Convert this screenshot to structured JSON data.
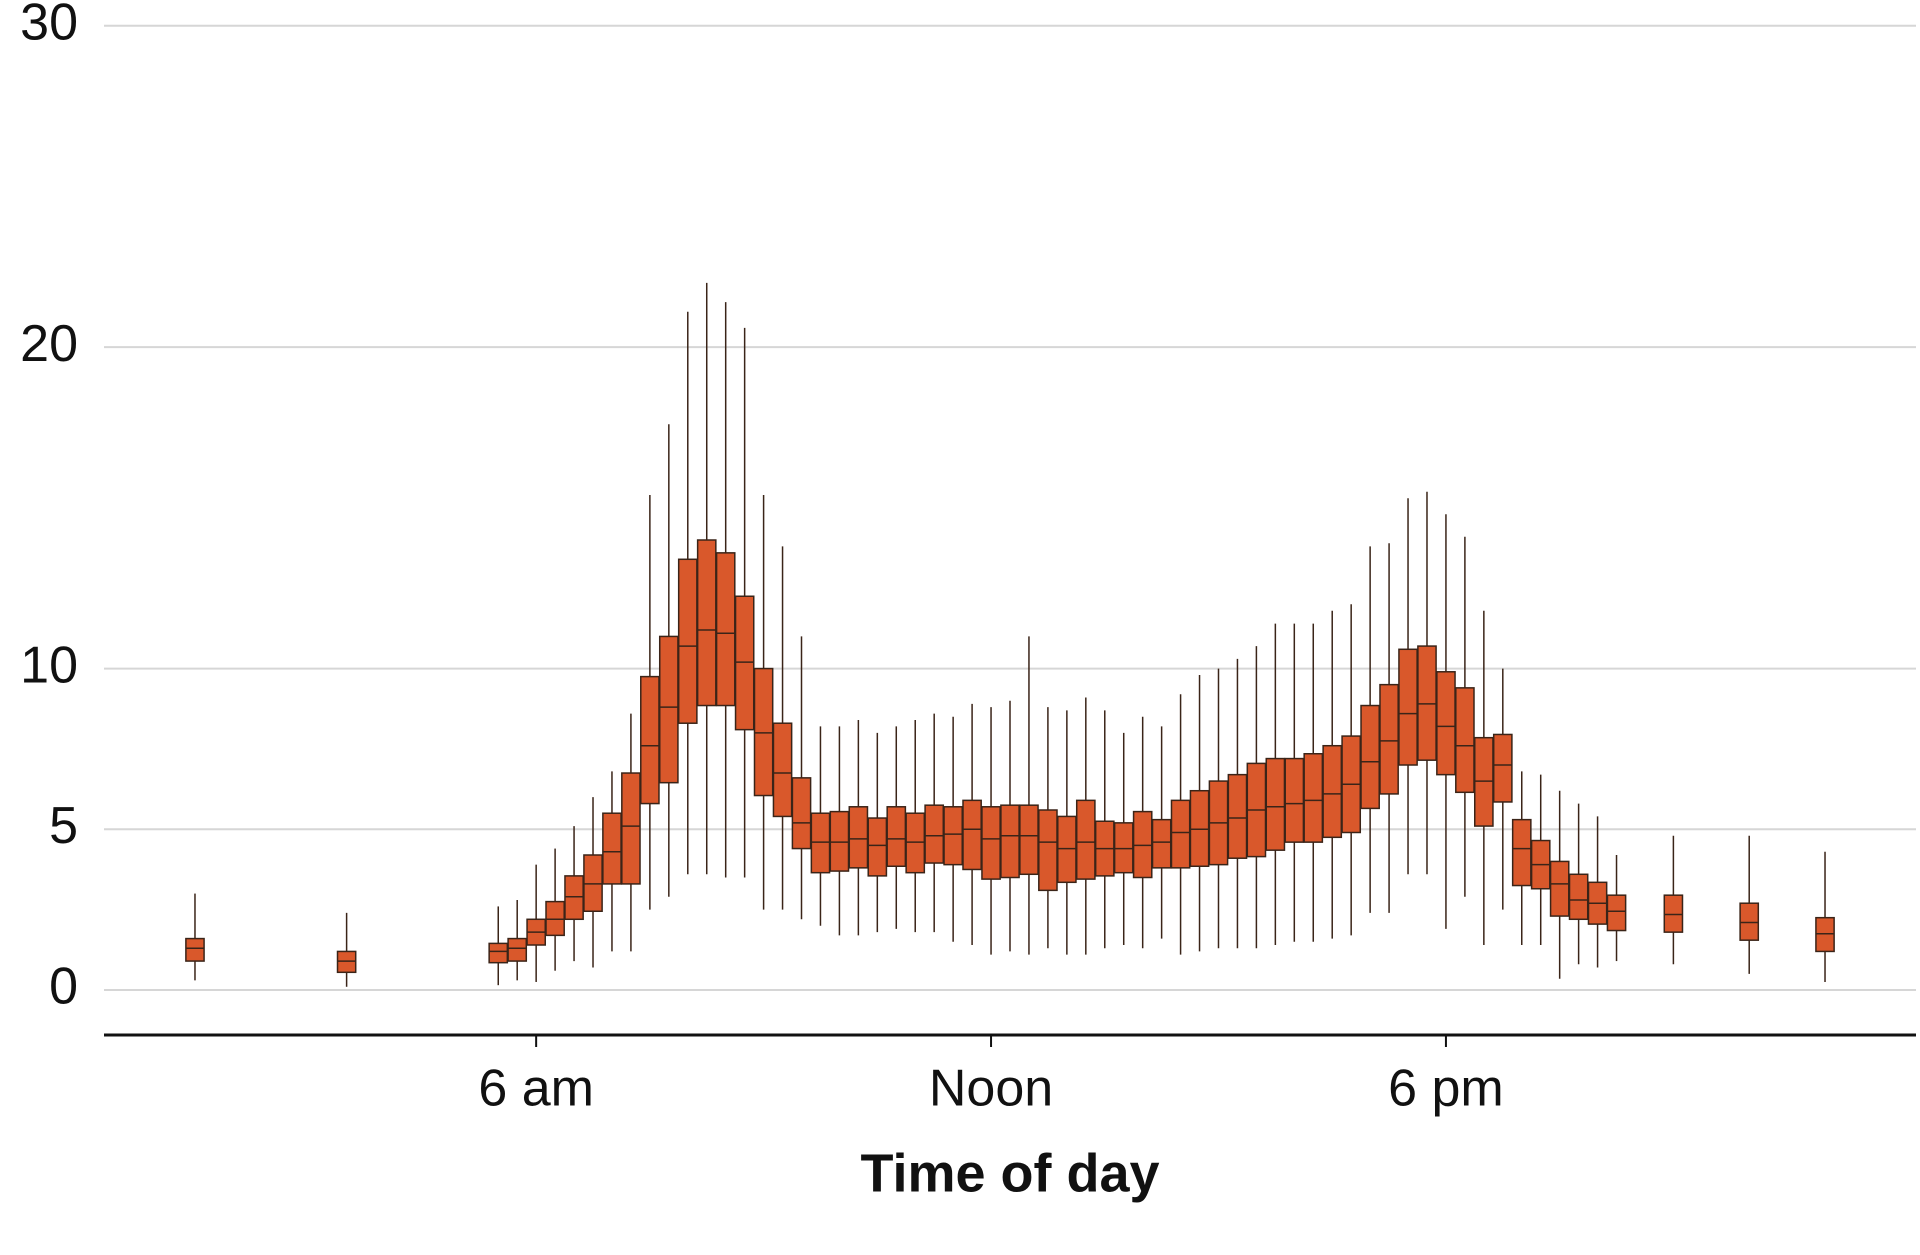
{
  "chart_data": {
    "type": "box",
    "x_label": "Time of day",
    "color": "#d9582b",
    "edge_color": "#3a2418",
    "grid": true,
    "xlim": [
      0.3,
      24.2
    ],
    "xticks": [
      {
        "value": 6,
        "label": "6 am"
      },
      {
        "value": 12,
        "label": "Noon"
      },
      {
        "value": 18,
        "label": "6 pm"
      }
    ],
    "ylim": [
      -1.4,
      30.8
    ],
    "yticks": [
      0,
      5,
      10,
      20,
      30
    ],
    "x": [
      1.5,
      3.5,
      5.5,
      5.75,
      6.0,
      6.25,
      6.5,
      6.75,
      7.0,
      7.25,
      7.5,
      7.75,
      8.0,
      8.25,
      8.5,
      8.75,
      9.0,
      9.25,
      9.5,
      9.75,
      10.0,
      10.25,
      10.5,
      10.75,
      11.0,
      11.25,
      11.5,
      11.75,
      12.0,
      12.25,
      12.5,
      12.75,
      13.0,
      13.25,
      13.5,
      13.75,
      14.0,
      14.25,
      14.5,
      14.75,
      15.0,
      15.25,
      15.5,
      15.75,
      16.0,
      16.25,
      16.5,
      16.75,
      17.0,
      17.25,
      17.5,
      17.75,
      18.0,
      18.25,
      18.5,
      18.75,
      19.0,
      19.25,
      19.5,
      19.75,
      20.0,
      20.25,
      21.0,
      22.0,
      23.0
    ],
    "q1": [
      0.9,
      0.55,
      0.85,
      0.9,
      1.4,
      1.7,
      2.2,
      2.45,
      3.3,
      3.3,
      5.8,
      6.45,
      8.3,
      8.85,
      8.85,
      8.1,
      6.05,
      5.4,
      4.4,
      3.65,
      3.7,
      3.8,
      3.55,
      3.85,
      3.65,
      3.95,
      3.9,
      3.75,
      3.45,
      3.5,
      3.6,
      3.1,
      3.35,
      3.45,
      3.55,
      3.65,
      3.5,
      3.8,
      3.8,
      3.85,
      3.9,
      4.1,
      4.15,
      4.35,
      4.6,
      4.6,
      4.75,
      4.9,
      5.65,
      6.1,
      7.0,
      7.15,
      6.7,
      6.15,
      5.1,
      5.85,
      3.25,
      3.15,
      2.3,
      2.2,
      2.05,
      1.85,
      1.8,
      1.55,
      1.2
    ],
    "median": [
      1.3,
      0.9,
      1.2,
      1.3,
      1.8,
      2.2,
      2.9,
      3.3,
      4.3,
      5.1,
      7.6,
      8.8,
      10.7,
      11.2,
      11.1,
      10.2,
      8.0,
      6.75,
      5.2,
      4.6,
      4.6,
      4.7,
      4.5,
      4.7,
      4.6,
      4.8,
      4.85,
      5.0,
      4.7,
      4.8,
      4.8,
      4.6,
      4.4,
      4.6,
      4.4,
      4.4,
      4.5,
      4.6,
      4.9,
      5.0,
      5.2,
      5.35,
      5.6,
      5.7,
      5.8,
      5.9,
      6.1,
      6.4,
      7.1,
      7.75,
      8.6,
      8.9,
      8.2,
      7.6,
      6.5,
      7.0,
      4.4,
      3.9,
      3.3,
      2.8,
      2.7,
      2.45,
      2.35,
      2.1,
      1.75
    ],
    "q3": [
      1.6,
      1.2,
      1.45,
      1.6,
      2.2,
      2.75,
      3.55,
      4.2,
      5.5,
      6.75,
      9.75,
      11.0,
      13.4,
      14.0,
      13.6,
      12.25,
      10.0,
      8.3,
      6.6,
      5.5,
      5.55,
      5.7,
      5.35,
      5.7,
      5.5,
      5.75,
      5.7,
      5.9,
      5.7,
      5.75,
      5.75,
      5.6,
      5.4,
      5.9,
      5.25,
      5.2,
      5.55,
      5.3,
      5.9,
      6.2,
      6.5,
      6.7,
      7.05,
      7.2,
      7.2,
      7.35,
      7.6,
      7.9,
      8.85,
      9.5,
      10.6,
      10.7,
      9.9,
      9.4,
      7.85,
      7.95,
      5.3,
      4.65,
      4.0,
      3.6,
      3.35,
      2.95,
      2.95,
      2.7,
      2.25
    ],
    "whisker_low": [
      0.3,
      0.1,
      0.15,
      0.3,
      0.25,
      0.6,
      0.9,
      0.7,
      1.2,
      1.2,
      2.5,
      2.9,
      3.6,
      3.6,
      3.5,
      3.5,
      2.5,
      2.5,
      2.2,
      2.0,
      1.7,
      1.7,
      1.8,
      1.9,
      1.8,
      1.8,
      1.5,
      1.4,
      1.1,
      1.2,
      1.1,
      1.3,
      1.1,
      1.1,
      1.3,
      1.4,
      1.3,
      1.6,
      1.1,
      1.2,
      1.3,
      1.3,
      1.3,
      1.4,
      1.5,
      1.5,
      1.6,
      1.7,
      2.4,
      2.4,
      3.6,
      3.6,
      1.9,
      2.9,
      1.4,
      2.5,
      1.4,
      1.4,
      0.35,
      0.8,
      0.7,
      0.9,
      0.8,
      0.5,
      0.25
    ],
    "whisker_high": [
      3.0,
      2.4,
      2.6,
      2.8,
      3.9,
      4.4,
      5.1,
      6.0,
      6.8,
      8.6,
      15.4,
      17.6,
      21.1,
      22.0,
      21.4,
      20.6,
      15.4,
      13.8,
      11.0,
      8.2,
      8.2,
      8.4,
      8.0,
      8.2,
      8.4,
      8.6,
      8.5,
      8.9,
      8.8,
      9.0,
      11.0,
      8.8,
      8.7,
      9.1,
      8.7,
      8.0,
      8.5,
      8.2,
      9.2,
      9.8,
      10.0,
      10.3,
      10.7,
      11.4,
      11.4,
      11.4,
      11.8,
      12.0,
      13.8,
      13.9,
      15.3,
      15.5,
      14.8,
      14.1,
      11.8,
      10.0,
      6.8,
      6.7,
      6.2,
      5.8,
      5.4,
      4.2,
      4.8,
      4.8,
      4.3
    ]
  }
}
